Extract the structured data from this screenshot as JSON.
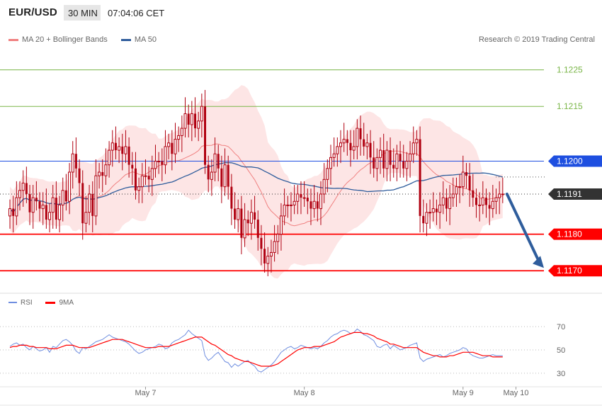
{
  "header": {
    "symbol": "EUR/USD",
    "timeframe": "30 MIN",
    "time": "07:04:06 CET"
  },
  "legend": {
    "ma20_bb": "MA 20 + Bollinger Bands",
    "ma50": "MA 50",
    "rsi": "RSI",
    "ma9": "9MA"
  },
  "copyright": "Research © 2019 Trading Central",
  "colors": {
    "bollinger": "#f08080",
    "bollinger_fill": "#fde0e0",
    "ma50": "#2f5d9c",
    "candle": "#b00010",
    "green_level": "#7ab648",
    "red_level": "#ff0000",
    "blue_level": "#1e4fe0",
    "rsi": "#6f8ee0",
    "ma9": "#ff0000"
  },
  "chart_data": [
    {
      "type": "candlestick",
      "ylim": [
        1.1165,
        1.1229
      ],
      "levels": [
        {
          "value": 1.1225,
          "label": "1.1225",
          "kind": "green"
        },
        {
          "value": 1.1215,
          "label": "1.1215",
          "kind": "green"
        },
        {
          "value": 1.12,
          "label": "1.1200",
          "kind": "blue"
        },
        {
          "value": 1.1191,
          "label": "1.1191",
          "kind": "current"
        },
        {
          "value": 1.118,
          "label": "1.1180",
          "kind": "red"
        },
        {
          "value": 1.117,
          "label": "1.1170",
          "kind": "red"
        }
      ],
      "x_labels": [
        {
          "index": 41,
          "label": "May 7"
        },
        {
          "index": 89,
          "label": "May 8"
        },
        {
          "index": 137,
          "label": "May 9"
        },
        {
          "index": 153,
          "label": "May 10"
        }
      ],
      "forecast": {
        "from": 1.1191,
        "to": 1.117
      },
      "prices": [
        1.1187,
        1.1185,
        1.119,
        1.1192,
        1.1194,
        1.1191,
        1.1186,
        1.119,
        1.1189,
        1.1187,
        1.1188,
        1.1184,
        1.1186,
        1.119,
        1.1184,
        1.1188,
        1.1192,
        1.1189,
        1.1197,
        1.1202,
        1.1198,
        1.1194,
        1.1183,
        1.1186,
        1.1191,
        1.1185,
        1.1196,
        1.1197,
        1.1196,
        1.1199,
        1.1203,
        1.1205,
        1.1203,
        1.1204,
        1.1202,
        1.1204,
        1.1199,
        1.1198,
        1.1192,
        1.1193,
        1.1196,
        1.1196,
        1.1195,
        1.1198,
        1.12,
        1.12,
        1.1199,
        1.1204,
        1.1205,
        1.1202,
        1.1206,
        1.1207,
        1.1209,
        1.1213,
        1.121,
        1.1213,
        1.1209,
        1.1211,
        1.1215,
        1.1199,
        1.1195,
        1.1197,
        1.1202,
        1.1198,
        1.1193,
        1.1199,
        1.1193,
        1.1187,
        1.1184,
        1.1187,
        1.1179,
        1.1184,
        1.1183,
        1.1186,
        1.1184,
        1.1179,
        1.1176,
        1.1172,
        1.1174,
        1.1175,
        1.1178,
        1.118,
        1.1185,
        1.1188,
        1.1188,
        1.1188,
        1.1189,
        1.1191,
        1.119,
        1.119,
        1.1189,
        1.1187,
        1.1189,
        1.1187,
        1.1191,
        1.1195,
        1.1198,
        1.1201,
        1.1202,
        1.1204,
        1.1205,
        1.1206,
        1.1205,
        1.1203,
        1.1204,
        1.1209,
        1.1206,
        1.1204,
        1.1205,
        1.1201,
        1.1198,
        1.1201,
        1.1203,
        1.1198,
        1.1203,
        1.1199,
        1.1198,
        1.1202,
        1.12,
        1.1198,
        1.12,
        1.1202,
        1.1205,
        1.1206,
        1.1185,
        1.1183,
        1.1186,
        1.1186,
        1.1187,
        1.1186,
        1.1188,
        1.119,
        1.1187,
        1.119,
        1.1191,
        1.1193,
        1.1193,
        1.1197,
        1.1196,
        1.1192,
        1.119,
        1.1188,
        1.1188,
        1.119,
        1.1188,
        1.1187,
        1.1189,
        1.119,
        1.1191,
        1.1191
      ]
    },
    {
      "type": "line",
      "name": "RSI",
      "ylim": [
        22,
        78
      ],
      "ticks": [
        30,
        50,
        70
      ],
      "series_rsi": [
        53,
        55,
        56,
        54,
        55,
        52,
        50,
        53,
        51,
        49,
        50,
        52,
        48,
        53,
        52,
        55,
        58,
        59,
        57,
        54,
        49,
        47,
        52,
        51,
        53,
        55,
        57,
        58,
        59,
        61,
        63,
        61,
        60,
        59,
        58,
        57,
        55,
        52,
        49,
        47,
        48,
        50,
        51,
        52,
        53,
        55,
        54,
        51,
        52,
        56,
        58,
        59,
        61,
        63,
        67,
        64,
        62,
        60,
        58,
        45,
        41,
        43,
        46,
        48,
        44,
        40,
        39,
        35,
        38,
        36,
        38,
        40,
        41,
        38,
        36,
        32,
        31,
        33,
        35,
        37,
        40,
        44,
        48,
        50,
        52,
        53,
        51,
        52,
        54,
        53,
        52,
        51,
        52,
        51,
        53,
        56,
        58,
        61,
        63,
        64,
        66,
        67,
        66,
        64,
        65,
        68,
        66,
        63,
        62,
        60,
        58,
        53,
        52,
        54,
        55,
        51,
        54,
        52,
        50,
        51,
        52,
        54,
        55,
        56,
        43,
        40,
        42,
        43,
        44,
        45,
        46,
        44,
        45,
        47,
        48,
        49,
        50,
        52,
        51,
        47,
        45,
        44,
        43,
        43,
        44,
        45,
        46,
        45,
        45,
        45
      ],
      "series_ma9": [
        52,
        53,
        53,
        54,
        54,
        54,
        53,
        53,
        52,
        52,
        52,
        52,
        51,
        51,
        51,
        52,
        53,
        54,
        54,
        54,
        53,
        52,
        52,
        52,
        52,
        53,
        54,
        55,
        56,
        57,
        58,
        59,
        59,
        59,
        59,
        58,
        57,
        56,
        55,
        54,
        53,
        52,
        52,
        52,
        52,
        53,
        53,
        53,
        53,
        54,
        55,
        56,
        57,
        58,
        59,
        60,
        61,
        61,
        61,
        59,
        57,
        55,
        54,
        52,
        50,
        48,
        46,
        45,
        43,
        42,
        41,
        40,
        40,
        39,
        38,
        37,
        36,
        36,
        36,
        36,
        37,
        38,
        40,
        42,
        44,
        46,
        48,
        50,
        51,
        52,
        52,
        52,
        53,
        53,
        53,
        54,
        55,
        56,
        57,
        59,
        61,
        62,
        63,
        64,
        65,
        65,
        65,
        64,
        64,
        63,
        62,
        60,
        59,
        58,
        57,
        55,
        55,
        54,
        53,
        52,
        52,
        52,
        52,
        52,
        50,
        48,
        47,
        46,
        45,
        45,
        44,
        44,
        44,
        45,
        45,
        46,
        47,
        48,
        48,
        48,
        48,
        47,
        46,
        45,
        45,
        45,
        44,
        44,
        44,
        44
      ]
    }
  ]
}
